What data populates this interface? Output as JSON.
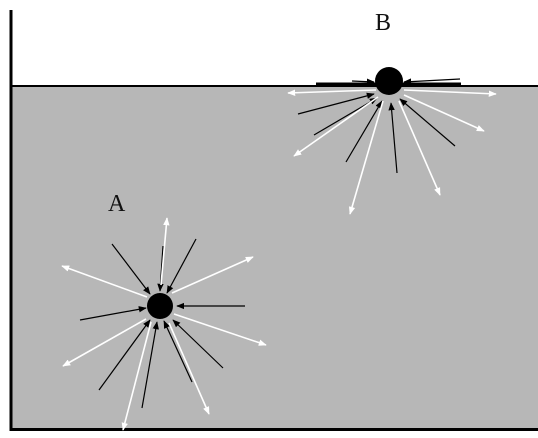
{
  "labels": {
    "a": "A",
    "b": "B"
  },
  "colors": {
    "liquid": "#b7b7b7",
    "container_wall": "#000000",
    "molecule": "#000000",
    "inward_arrow": "#000000",
    "outward_arrow": "#ffffff",
    "background": "#ffffff"
  },
  "icons": {
    "molecule": "filled-circle",
    "force_arrow": "arrow"
  }
}
